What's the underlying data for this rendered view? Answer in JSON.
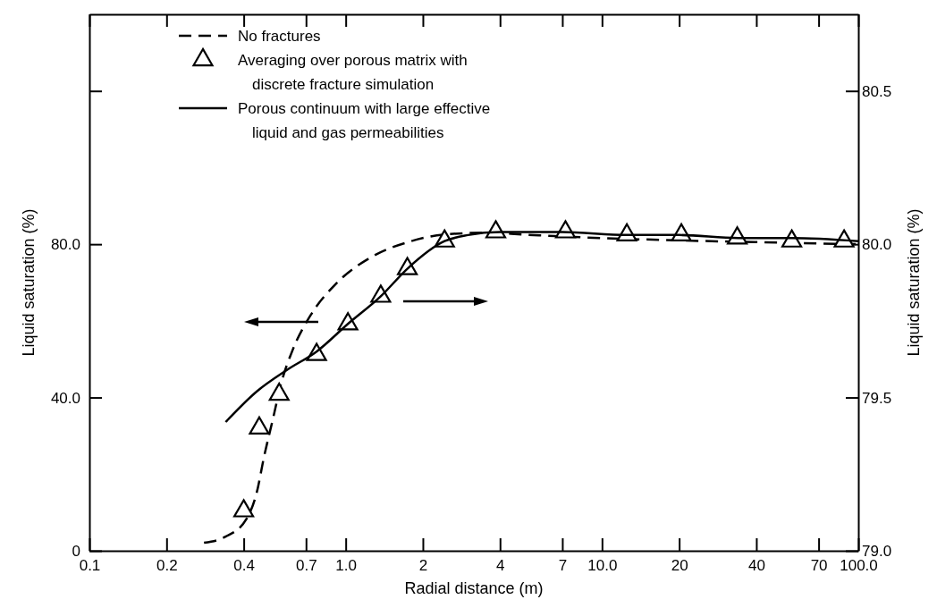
{
  "chart_data": {
    "type": "line",
    "xlabel": "Radial distance (m)",
    "ylabel": "Liquid saturation (%)",
    "y2label": "Liquid saturation (%)",
    "log": "x",
    "grid": false,
    "legend": "top left",
    "xlim": [
      0.1,
      100
    ],
    "xticks": [
      0.1,
      0.2,
      0.4,
      0.7,
      {
        "value": 1,
        "label": "1.0"
      },
      2,
      4,
      7,
      {
        "value": 10,
        "label": "10.0"
      },
      20,
      40,
      70,
      {
        "value": 100,
        "label": "100.0"
      }
    ],
    "ylim": [
      0,
      140
    ],
    "yticks": [
      0,
      {
        "value": 40,
        "label": "40.0"
      },
      {
        "value": 80,
        "label": "80.0"
      },
      {
        "value": 120,
        "label": null
      }
    ],
    "y2lim": [
      79,
      80.75
    ],
    "y2ticks": [
      {
        "value": 79,
        "label": "79.0"
      },
      79.5,
      {
        "value": 80,
        "label": "80.0"
      },
      80.5
    ],
    "series": [
      {
        "name": "No fractures",
        "type": "line",
        "line_style": "dashed",
        "marker": "none",
        "color": "#000000",
        "x": [
          0.28,
          0.34,
          0.41,
          0.45,
          0.48,
          0.52,
          0.56,
          0.62,
          0.73,
          0.92,
          1.27,
          1.78,
          2.4,
          3.5,
          5,
          10,
          20,
          50,
          100
        ],
        "values": [
          2.1,
          3.7,
          8.3,
          15.3,
          24.5,
          34.4,
          43.7,
          52.3,
          61.5,
          69.8,
          76.8,
          80.7,
          82.5,
          83,
          82.5,
          81.6,
          81,
          80.4,
          80
        ]
      },
      {
        "name": "Averaging over porous matrix with discrete fracture simulation",
        "type": "scatter",
        "marker": "triangle",
        "axis": "y2",
        "color": "#000000",
        "x": [
          0.4,
          0.46,
          0.55,
          0.77,
          1.02,
          1.37,
          1.74,
          2.43,
          3.85,
          7.2,
          12.5,
          20.4,
          33.7,
          55,
          88
        ],
        "values": [
          79.13,
          79.4,
          79.51,
          79.64,
          79.74,
          79.83,
          79.92,
          80.01,
          80.04,
          80.04,
          80.03,
          80.03,
          80.02,
          80.01,
          80.01
        ]
      },
      {
        "name": "Porous continuum with large effective liquid and gas permeabilities",
        "type": "line",
        "line_style": "solid",
        "marker": "none",
        "axis": "y2",
        "color": "#000000",
        "x": [
          0.34,
          0.45,
          0.59,
          0.77,
          1.02,
          1.37,
          1.74,
          2.43,
          3,
          4,
          7,
          12.5,
          20,
          34,
          55,
          100
        ],
        "values": [
          79.42,
          79.52,
          79.59,
          79.65,
          79.74,
          79.83,
          79.92,
          80.01,
          80.03,
          80.04,
          80.04,
          80.03,
          80.03,
          80.02,
          80.02,
          80.01
        ]
      }
    ]
  }
}
